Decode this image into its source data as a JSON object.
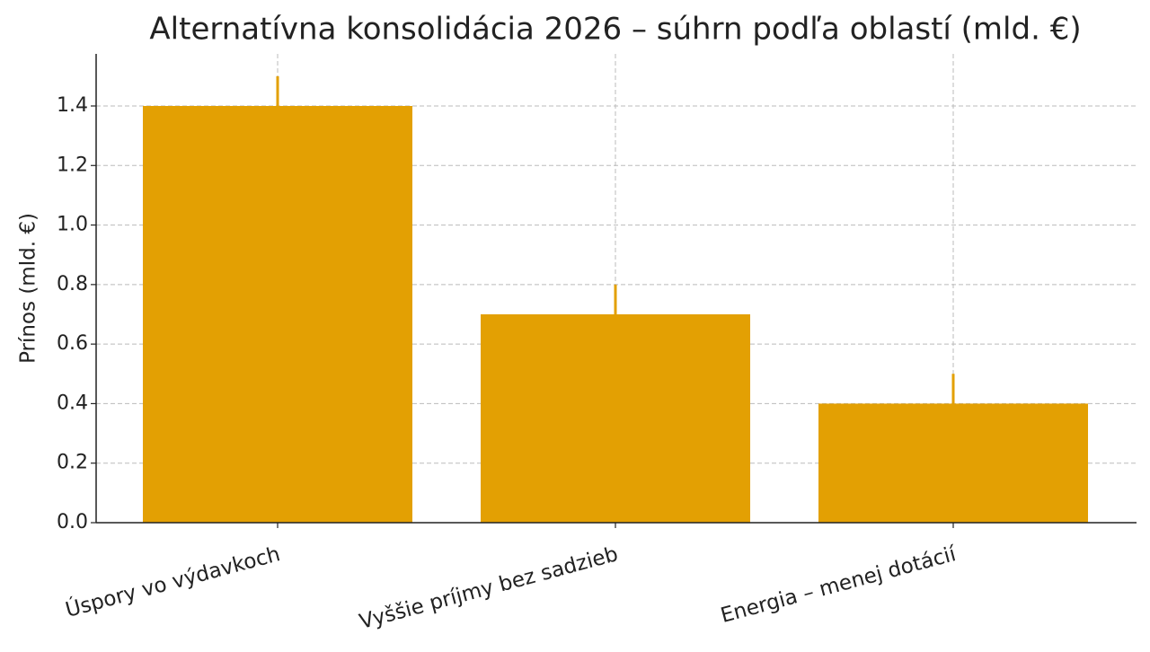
{
  "chart_data": {
    "type": "bar",
    "title": "Alternatívna konsolidácia 2026 – súhrn podľa oblastí (mld. €)",
    "y_label": "Prínos (mld. €)",
    "categories": [
      "Úspory vo výdavkoch",
      "Vyššie príjmy bez sadzieb",
      "Energia – menej dotácií"
    ],
    "values": [
      1.4,
      0.7,
      0.4
    ],
    "errors": [
      0.1,
      0.1,
      0.1
    ],
    "color": "#e3a003",
    "ylim": [
      0,
      1.575
    ],
    "yticks": [
      {
        "value": 0,
        "label": "0.0"
      },
      0.2,
      0.4,
      0.6,
      0.8,
      {
        "value": 1,
        "label": "1.0"
      },
      1.2,
      1.4
    ],
    "grid": true
  }
}
